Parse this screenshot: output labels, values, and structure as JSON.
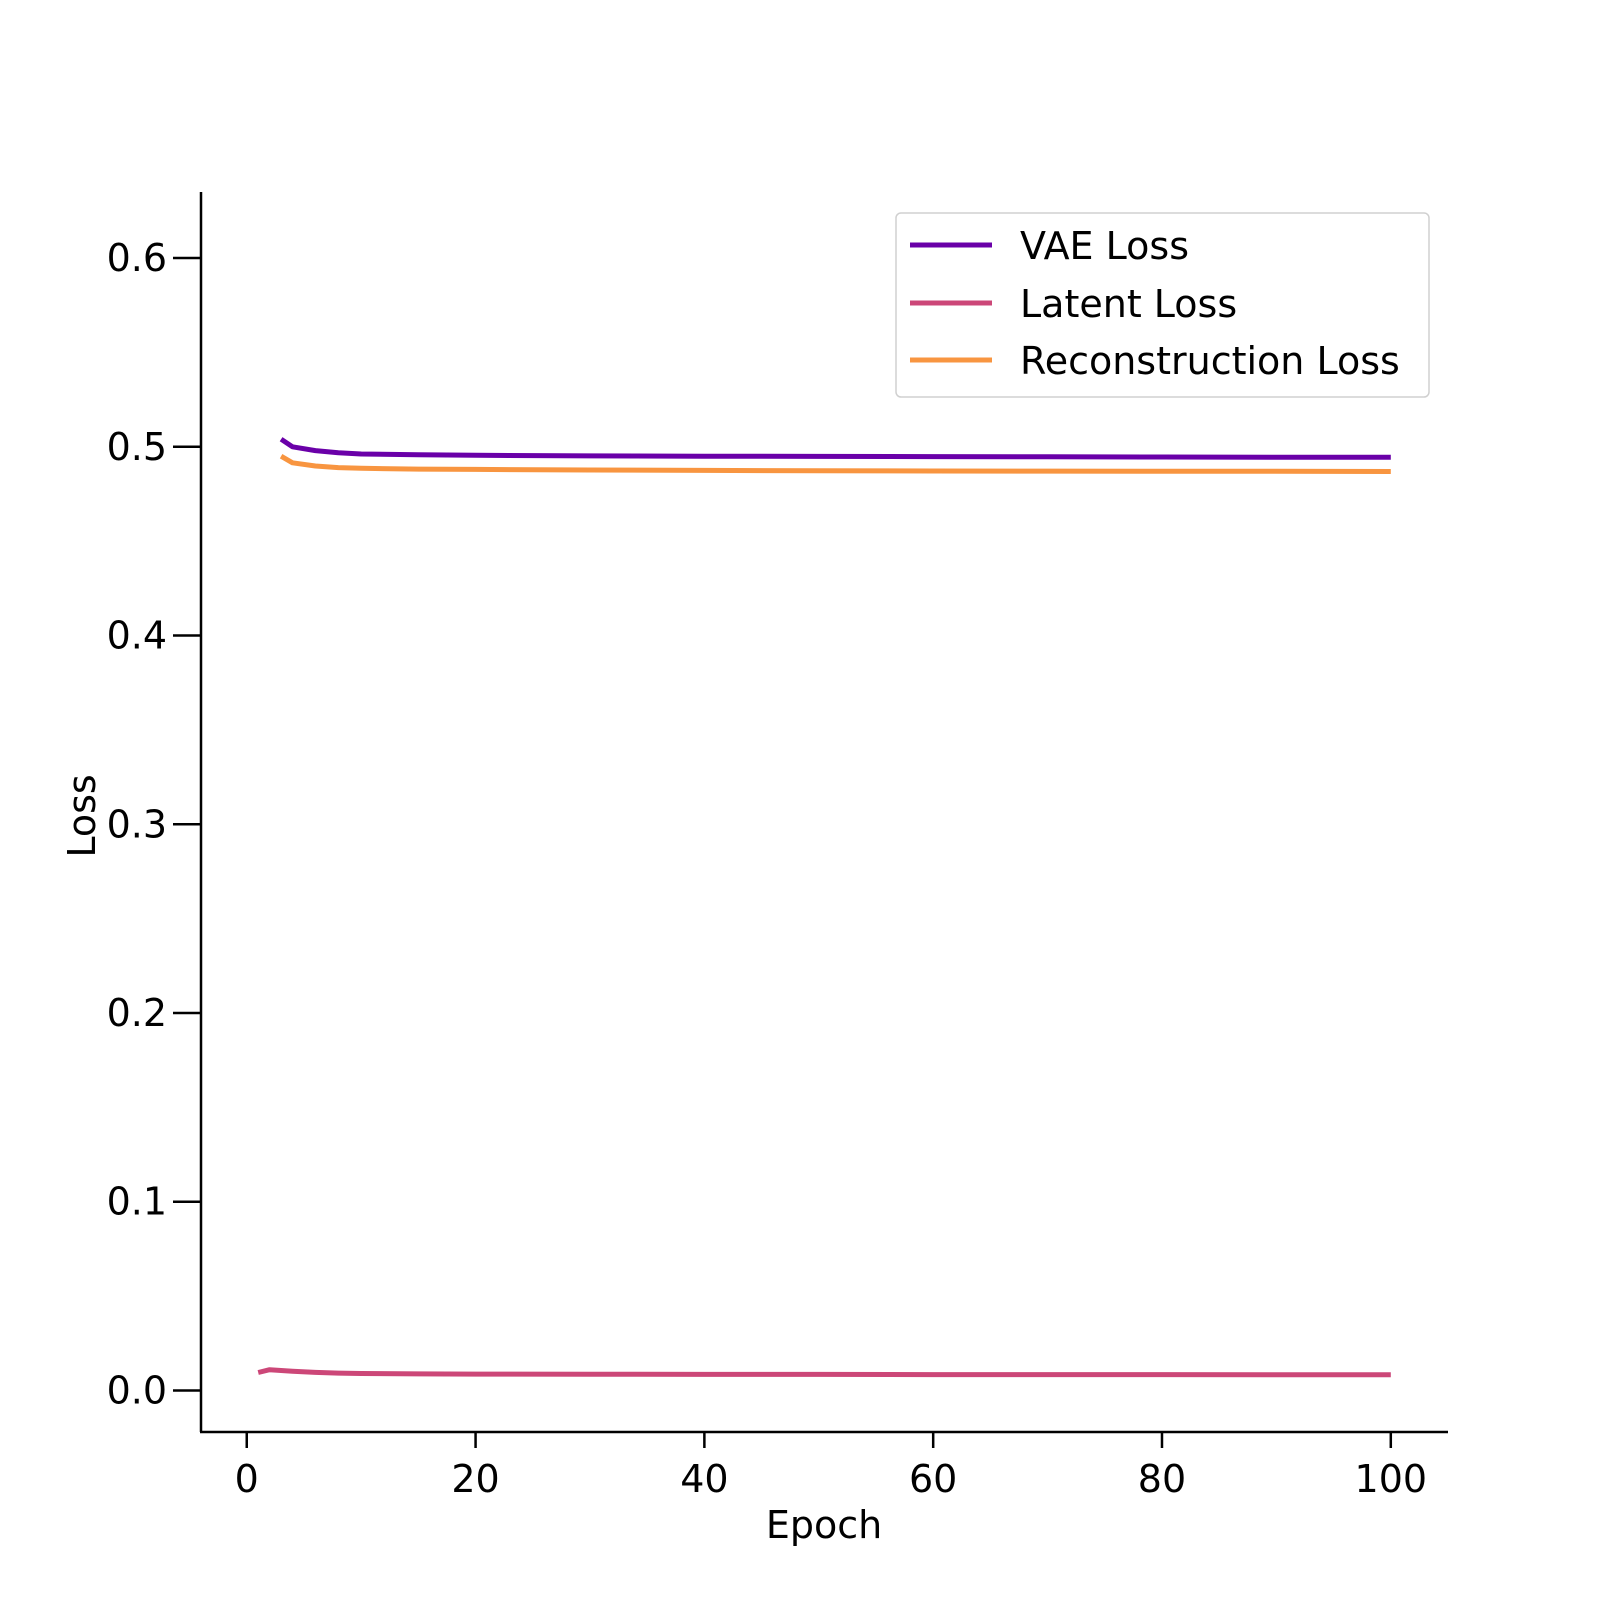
{
  "chart_data": {
    "type": "line",
    "title": "",
    "xlabel": "Epoch",
    "ylabel": "Loss",
    "xlim": [
      -4,
      105
    ],
    "ylim": [
      -0.022,
      0.635
    ],
    "xticks": [
      0,
      20,
      40,
      60,
      80,
      100
    ],
    "xtick_labels": [
      "0",
      "20",
      "40",
      "60",
      "80",
      "100"
    ],
    "yticks": [
      0.0,
      0.1,
      0.2,
      0.3,
      0.4,
      0.5,
      0.6
    ],
    "ytick_labels": [
      "0.0",
      "0.1",
      "0.2",
      "0.3",
      "0.4",
      "0.5",
      "0.6"
    ],
    "grid": false,
    "legend_position": "top-right",
    "series": [
      {
        "name": "VAE Loss",
        "color": "#6a00a8",
        "x": [
          3,
          4,
          6,
          8,
          10,
          15,
          20,
          30,
          40,
          50,
          60,
          70,
          80,
          90,
          100
        ],
        "y": [
          0.504,
          0.5,
          0.498,
          0.4968,
          0.4962,
          0.4958,
          0.4955,
          0.4952,
          0.495,
          0.4949,
          0.4948,
          0.4947,
          0.4946,
          0.4945,
          0.4945
        ]
      },
      {
        "name": "Latent Loss",
        "color": "#cc4778",
        "x": [
          1,
          2,
          4,
          6,
          8,
          10,
          15,
          20,
          30,
          40,
          50,
          60,
          70,
          80,
          90,
          100
        ],
        "y": [
          0.0095,
          0.011,
          0.0102,
          0.0096,
          0.0092,
          0.009,
          0.0088,
          0.0087,
          0.0086,
          0.0085,
          0.0085,
          0.0084,
          0.0084,
          0.0084,
          0.0083,
          0.0083
        ]
      },
      {
        "name": "Reconstruction Loss",
        "color": "#f89540",
        "x": [
          3,
          4,
          6,
          8,
          10,
          15,
          20,
          30,
          40,
          50,
          60,
          70,
          80,
          90,
          100
        ],
        "y": [
          0.495,
          0.4915,
          0.4898,
          0.489,
          0.4886,
          0.4882,
          0.488,
          0.4877,
          0.4875,
          0.4873,
          0.4872,
          0.4871,
          0.487,
          0.487,
          0.4869
        ]
      }
    ]
  }
}
